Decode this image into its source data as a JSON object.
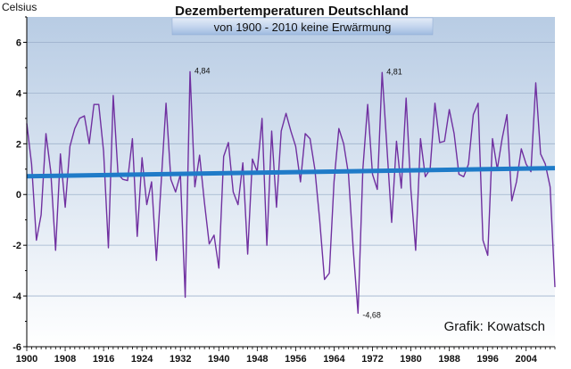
{
  "chart_data": {
    "type": "line",
    "title": "Dezembertemperaturen Deutschland",
    "subtitle": "von 1900 - 2010 keine Erwärmung",
    "ylabel": "Celsius",
    "xlabel": "",
    "credit": "Grafik: Kowatsch",
    "xlim": [
      1900,
      2010
    ],
    "ylim": [
      -6,
      7
    ],
    "y_ticks": [
      -6,
      -4,
      -2,
      0,
      2,
      4,
      6
    ],
    "x_ticks": [
      1900,
      1908,
      1916,
      1924,
      1932,
      1940,
      1948,
      1956,
      1964,
      1972,
      1980,
      1988,
      1996,
      2004
    ],
    "grid": true,
    "legend": "none",
    "colors": {
      "series": "#7030A0",
      "trend": "#1F7BC8",
      "plot_bg_top": "#B8CCE4",
      "plot_bg_bottom": "#FFFFFF"
    },
    "series": [
      {
        "x": [
          1900,
          1901,
          1902,
          1903,
          1904,
          1905,
          1906,
          1907,
          1908,
          1909,
          1910,
          1911,
          1912,
          1913,
          1914,
          1915,
          1916,
          1917,
          1918,
          1919,
          1920,
          1921,
          1922,
          1923,
          1924,
          1925,
          1926,
          1927,
          1928,
          1929,
          1930,
          1931,
          1932,
          1933,
          1934,
          1935,
          1936,
          1937,
          1938,
          1939,
          1940,
          1941,
          1942,
          1943,
          1944,
          1945,
          1946,
          1947,
          1948,
          1949,
          1950,
          1951,
          1952,
          1953,
          1954,
          1955,
          1956,
          1957,
          1958,
          1959,
          1960,
          1961,
          1962,
          1963,
          1964,
          1965,
          1966,
          1967,
          1968,
          1969,
          1970,
          1971,
          1972,
          1973,
          1974,
          1975,
          1976,
          1977,
          1978,
          1979,
          1980,
          1981,
          1982,
          1983,
          1984,
          1985,
          1986,
          1987,
          1988,
          1989,
          1990,
          1991,
          1992,
          1993,
          1994,
          1995,
          1996,
          1997,
          1998,
          1999,
          2000,
          2001,
          2002,
          2003,
          2004,
          2005,
          2006,
          2007,
          2008,
          2009,
          2010
        ],
        "values": [
          2.8,
          1.2,
          -1.8,
          -0.8,
          2.4,
          0.9,
          -2.2,
          1.6,
          -0.5,
          1.9,
          2.6,
          3.0,
          3.1,
          2.0,
          3.55,
          3.55,
          1.7,
          -2.1,
          3.9,
          0.8,
          0.6,
          0.55,
          2.2,
          -1.65,
          1.45,
          -0.4,
          0.5,
          -2.6,
          0.5,
          3.6,
          0.6,
          0.1,
          0.8,
          -4.05,
          4.84,
          0.3,
          1.55,
          -0.3,
          -1.95,
          -1.6,
          -2.9,
          1.5,
          2.05,
          0.1,
          -0.4,
          1.25,
          -2.35,
          1.4,
          0.9,
          3.0,
          -2.0,
          2.5,
          -0.5,
          2.5,
          3.2,
          2.5,
          1.9,
          0.5,
          2.4,
          2.2,
          1.0,
          -1.0,
          -3.35,
          -3.1,
          0.5,
          2.6,
          2.0,
          0.8,
          -2.2,
          -4.68,
          1.0,
          3.55,
          0.8,
          0.2,
          4.81,
          1.9,
          -1.1,
          2.1,
          0.25,
          3.8,
          0.2,
          -2.2,
          2.2,
          0.7,
          1.0,
          3.6,
          2.05,
          2.1,
          3.35,
          2.4,
          0.8,
          0.7,
          1.2,
          3.15,
          3.6,
          -1.8,
          -2.4,
          2.2,
          1.0,
          2.2,
          3.15,
          -0.25,
          0.5,
          1.8,
          1.2,
          0.9,
          4.4,
          1.6,
          1.2,
          0.3,
          -3.65
        ]
      }
    ],
    "trend": {
      "x": [
        1900,
        2010
      ],
      "values": [
        0.72,
        1.04
      ]
    },
    "annotations": [
      {
        "x": 1934,
        "y": 4.84,
        "text": "4,84"
      },
      {
        "x": 1974,
        "y": 4.81,
        "text": "4,81"
      },
      {
        "x": 1969,
        "y": -4.68,
        "text": "-4,68"
      }
    ]
  }
}
